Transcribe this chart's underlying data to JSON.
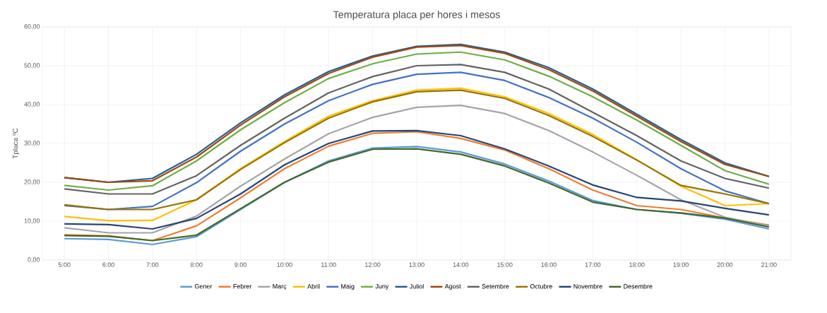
{
  "chart_data": {
    "type": "line",
    "title": "Temperatura placa per hores i mesos",
    "ylabel": "Tplaca ºC",
    "categories": [
      "5:00",
      "6:00",
      "7:00",
      "8:00",
      "9:00",
      "10:00",
      "11:00",
      "12:00",
      "13:00",
      "14:00",
      "15:00",
      "16:00",
      "17:00",
      "18:00",
      "19:00",
      "20:00",
      "21:00"
    ],
    "ylim": [
      0,
      60
    ],
    "yticks": [
      {
        "value": 0,
        "label": "0,00"
      },
      {
        "value": 10,
        "label": "10,00"
      },
      {
        "value": 20,
        "label": "20,00"
      },
      {
        "value": 30,
        "label": "30,00"
      },
      {
        "value": 40,
        "label": "40,00"
      },
      {
        "value": 50,
        "label": "50,00"
      },
      {
        "value": 60,
        "label": "60,00"
      }
    ],
    "grid": true,
    "legend": "bottom",
    "marker": "none",
    "line_style": "solid",
    "series": [
      {
        "name": "Gener",
        "color": "#5b9bd5",
        "values": [
          5.5,
          5.3,
          4,
          6,
          13,
          20,
          25.5,
          28.8,
          29.2,
          27.8,
          24.7,
          20.3,
          15.3,
          13,
          12,
          10.5,
          8
        ]
      },
      {
        "name": "Febrer",
        "color": "#ed7d31",
        "values": [
          6.5,
          6.2,
          5,
          8.8,
          16,
          23.5,
          29.3,
          32.6,
          33,
          31.3,
          28.3,
          23.5,
          18,
          14,
          13,
          10.8,
          9
        ]
      },
      {
        "name": "Març",
        "color": "#a5a5a5",
        "values": [
          8.3,
          7,
          7,
          11.3,
          19,
          26,
          32.5,
          36.7,
          39.3,
          39.8,
          37.7,
          33.3,
          27.8,
          21.8,
          15.5,
          11,
          8.8
        ]
      },
      {
        "name": "Abril",
        "color": "#ffc000",
        "values": [
          11.2,
          10.1,
          10.2,
          15.5,
          23.5,
          30.5,
          37,
          41,
          43.7,
          44.2,
          42,
          37.7,
          32.3,
          25.8,
          19,
          14,
          14.5
        ]
      },
      {
        "name": "Maig",
        "color": "#4472c4",
        "values": [
          14,
          13,
          13.8,
          19.9,
          28,
          35,
          41,
          45.2,
          47.8,
          48.3,
          46.2,
          41.8,
          36.5,
          30.3,
          23.5,
          17.8,
          14.5
        ]
      },
      {
        "name": "Juny",
        "color": "#70ad47",
        "values": [
          19.2,
          18,
          19.1,
          25.5,
          33.5,
          40.5,
          46.7,
          50.5,
          53,
          53.5,
          51.5,
          47.3,
          42,
          36,
          29.5,
          23,
          19.5
        ]
      },
      {
        "name": "Juliol",
        "color": "#255e91",
        "values": [
          21.2,
          20,
          21,
          27.2,
          35.3,
          42.5,
          48.5,
          52.5,
          55,
          55.5,
          53.5,
          49.5,
          44,
          37.5,
          31,
          25,
          21.5
        ]
      },
      {
        "name": "Agost",
        "color": "#9e480e",
        "values": [
          21.2,
          20,
          20.4,
          26.5,
          34.7,
          42,
          48,
          52.2,
          54.8,
          55.2,
          53.2,
          49,
          43.5,
          37,
          30.5,
          24.6,
          21.5
        ]
      },
      {
        "name": "Setembre",
        "color": "#636363",
        "values": [
          18.3,
          17,
          17,
          21.7,
          29.5,
          36.5,
          43,
          47.2,
          50,
          50.3,
          48.3,
          44,
          38,
          32,
          25.5,
          21,
          18.5
        ]
      },
      {
        "name": "Octubre",
        "color": "#997300",
        "values": [
          14.2,
          13,
          13,
          15.5,
          23.3,
          30.2,
          36.5,
          40.7,
          43.3,
          43.7,
          41.6,
          37.2,
          31.8,
          25.7,
          19.2,
          17,
          14.5
        ]
      },
      {
        "name": "Novembre",
        "color": "#264478",
        "values": [
          9.3,
          9.1,
          8,
          10.7,
          17,
          24.5,
          30,
          33.2,
          33.3,
          32,
          28.6,
          24.2,
          19.3,
          16.1,
          15.2,
          13.3,
          11.6
        ]
      },
      {
        "name": "Desembre",
        "color": "#43682b",
        "values": [
          6.3,
          6.1,
          5,
          6.4,
          13.2,
          20,
          25.2,
          28.5,
          28.6,
          27.2,
          24.2,
          19.8,
          14.9,
          13,
          12.1,
          10.8,
          8.5
        ]
      }
    ]
  }
}
